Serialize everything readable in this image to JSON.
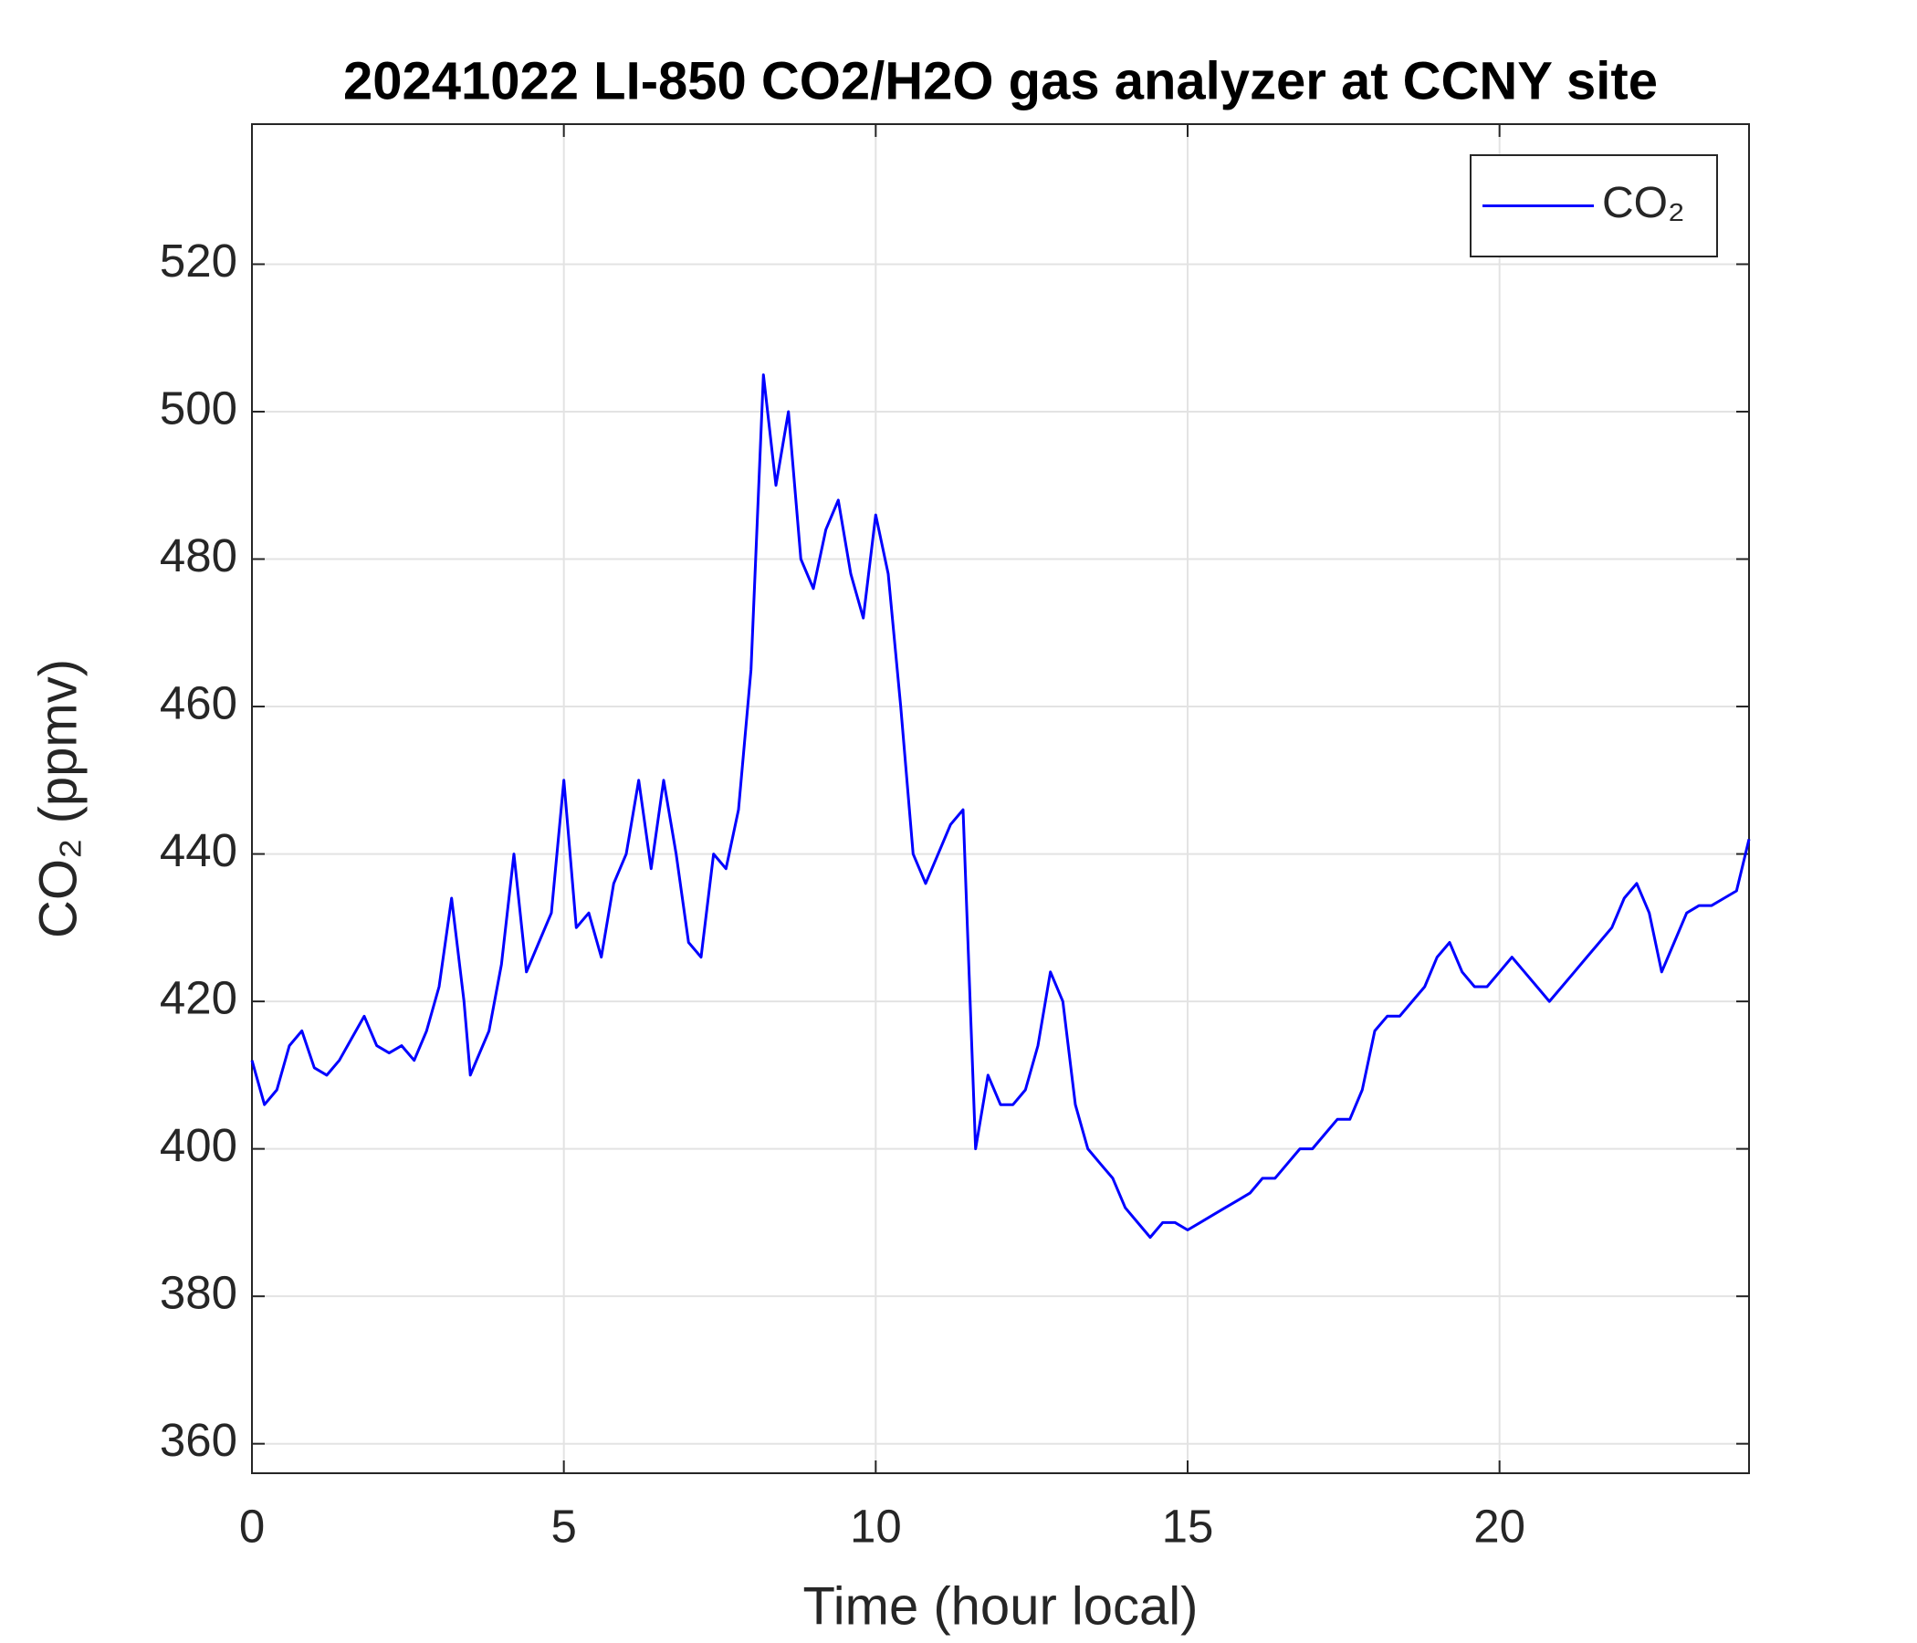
{
  "chart_data": {
    "type": "line",
    "title": "20241022 LI-850 CO2/H2O gas analyzer at CCNY site",
    "xlabel": "Time (hour local)",
    "ylabel": "CO₂ (ppmv)",
    "x": [
      0,
      0.2,
      0.4,
      0.6,
      0.8,
      1.0,
      1.2,
      1.4,
      1.6,
      1.8,
      2.0,
      2.2,
      2.4,
      2.6,
      2.8,
      3.0,
      3.2,
      3.4,
      3.5,
      3.6,
      3.8,
      4.0,
      4.2,
      4.4,
      4.6,
      4.8,
      5.0,
      5.2,
      5.4,
      5.6,
      5.8,
      6.0,
      6.2,
      6.4,
      6.6,
      6.8,
      7.0,
      7.2,
      7.4,
      7.6,
      7.8,
      8.0,
      8.2,
      8.4,
      8.6,
      8.8,
      9.0,
      9.2,
      9.4,
      9.6,
      9.8,
      10.0,
      10.2,
      10.4,
      10.6,
      10.8,
      11.0,
      11.2,
      11.4,
      11.6,
      11.8,
      12.0,
      12.2,
      12.4,
      12.6,
      12.8,
      13.0,
      13.2,
      13.4,
      13.6,
      13.8,
      14.0,
      14.2,
      14.4,
      14.6,
      14.8,
      15.0,
      15.2,
      15.4,
      15.6,
      15.8,
      16.0,
      16.2,
      16.4,
      16.6,
      16.8,
      17.0,
      17.2,
      17.4,
      17.6,
      17.8,
      18.0,
      18.2,
      18.4,
      18.6,
      18.8,
      19.0,
      19.2,
      19.4,
      19.6,
      19.8,
      20.0,
      20.2,
      20.4,
      20.6,
      20.8,
      21.0,
      21.2,
      21.4,
      21.6,
      21.8,
      22.0,
      22.2,
      22.4,
      22.6,
      22.8,
      23.0,
      23.2,
      23.4,
      23.6,
      23.8,
      24.0
    ],
    "series": [
      {
        "name": "CO₂",
        "color": "#0000ff",
        "values": [
          412,
          406,
          408,
          414,
          416,
          411,
          410,
          412,
          415,
          418,
          414,
          413,
          414,
          412,
          416,
          422,
          434,
          420,
          410,
          412,
          416,
          425,
          440,
          424,
          428,
          432,
          450,
          430,
          432,
          426,
          436,
          440,
          450,
          438,
          450,
          440,
          428,
          426,
          440,
          438,
          446,
          465,
          505,
          490,
          500,
          480,
          476,
          484,
          488,
          478,
          472,
          486,
          478,
          460,
          440,
          436,
          440,
          444,
          446,
          400,
          410,
          406,
          406,
          408,
          414,
          424,
          420,
          406,
          400,
          398,
          396,
          392,
          390,
          388,
          390,
          390,
          389,
          390,
          391,
          392,
          393,
          394,
          396,
          396,
          398,
          400,
          400,
          402,
          404,
          404,
          408,
          416,
          418,
          418,
          420,
          422,
          426,
          428,
          424,
          422,
          422,
          424,
          426,
          424,
          422,
          420,
          422,
          424,
          426,
          428,
          430,
          434,
          436,
          432,
          424,
          428,
          432,
          433,
          433,
          434,
          435,
          442
        ]
      }
    ],
    "xlim": [
      0,
      24
    ],
    "xticks": [
      0,
      5,
      10,
      15,
      20
    ],
    "ylim": [
      356,
      539
    ],
    "yticks": [
      360,
      380,
      400,
      420,
      440,
      460,
      480,
      500,
      520
    ],
    "grid": true,
    "legend": "upper right"
  }
}
